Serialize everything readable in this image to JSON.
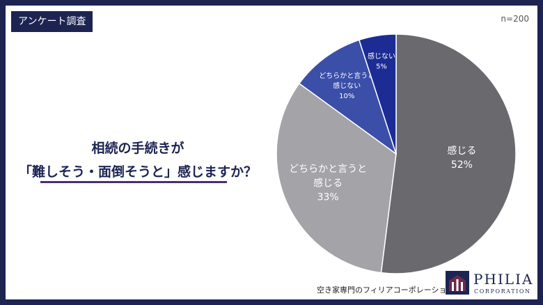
{
  "header": {
    "tag": "アンケート調査",
    "sample_size": "n=200"
  },
  "question": {
    "line1": "相続の手続きが",
    "line2": "「難しそう・面倒そうと」感じますか？"
  },
  "footer": {
    "source": "空き家専門のフィリアコーポレーション",
    "brand": "PHILIA",
    "brand_sub": "CORPORATION"
  },
  "colors": {
    "navy": "#1d2452",
    "underline": "#4a2e6e"
  },
  "chart_data": {
    "type": "pie",
    "slices": [
      {
        "label": "感じる",
        "value": 52,
        "value_label": "52%",
        "color": "#6a6a6e"
      },
      {
        "label": "どちらかと言うと感じる",
        "value": 33,
        "value_label": "33%",
        "color": "#a3a3a8"
      },
      {
        "label": "どちらかと言うと感じない",
        "value": 10,
        "value_label": "10%",
        "color": "#3b4ea8"
      },
      {
        "label": "感じない",
        "value": 5,
        "value_label": "5%",
        "color": "#1c2c94"
      }
    ]
  }
}
